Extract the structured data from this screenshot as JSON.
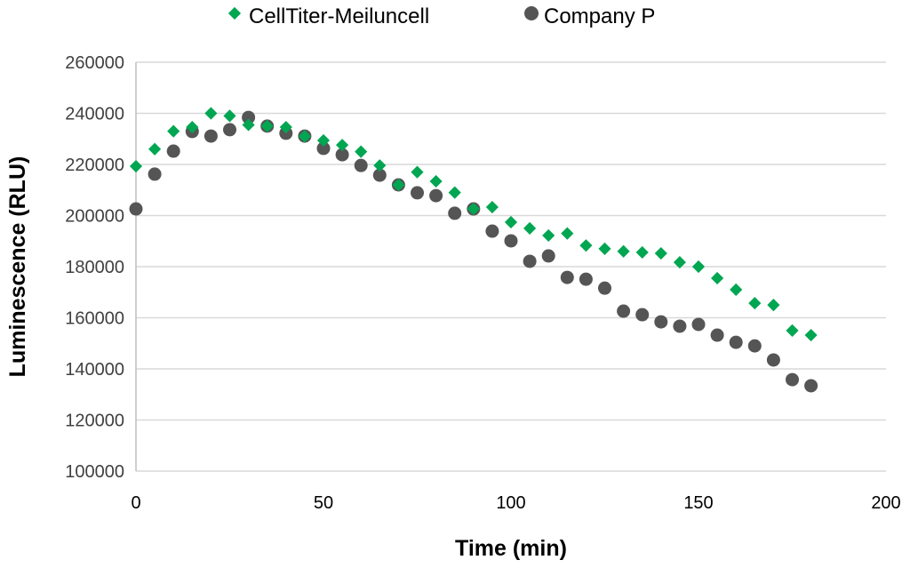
{
  "chart_data": {
    "type": "scatter",
    "title": "",
    "xlabel": "Time (min)",
    "ylabel": "Luminescence (RLU)",
    "xlim": [
      0,
      200
    ],
    "ylim": [
      100000,
      260000
    ],
    "xticks": [
      0,
      50,
      100,
      150,
      200
    ],
    "yticks": [
      100000,
      120000,
      140000,
      160000,
      180000,
      200000,
      220000,
      240000,
      260000
    ],
    "grid": "horizontal",
    "legend_position": "top",
    "x": [
      0,
      5,
      10,
      15,
      20,
      25,
      30,
      35,
      40,
      45,
      50,
      55,
      60,
      65,
      70,
      75,
      80,
      85,
      90,
      95,
      100,
      105,
      110,
      115,
      120,
      125,
      130,
      135,
      140,
      145,
      150,
      155,
      160,
      165,
      170,
      175,
      180
    ],
    "series": [
      {
        "name": "CellTiter-Meiluncell",
        "color": "#00a651",
        "marker": "diamond",
        "values": [
          219300,
          226000,
          233000,
          234600,
          240000,
          239000,
          235500,
          235000,
          234600,
          231000,
          229400,
          227600,
          225000,
          219600,
          212000,
          217000,
          213400,
          209000,
          202600,
          203300,
          197400,
          195000,
          192200,
          193000,
          188300,
          187000,
          186000,
          185600,
          185200,
          181700,
          180000,
          175500,
          171000,
          165700,
          165000,
          155000,
          153200
        ]
      },
      {
        "name": "Company P",
        "color": "#555555",
        "marker": "circle",
        "values": [
          202600,
          216200,
          225200,
          232900,
          231100,
          233600,
          238400,
          235000,
          232200,
          231100,
          226300,
          223800,
          219600,
          215800,
          212000,
          208900,
          207800,
          200900,
          202600,
          193900,
          190100,
          182100,
          184200,
          175800,
          175100,
          171600,
          162600,
          161200,
          158400,
          156700,
          157400,
          153200,
          150400,
          149000,
          143500,
          135800,
          133400
        ]
      }
    ]
  }
}
